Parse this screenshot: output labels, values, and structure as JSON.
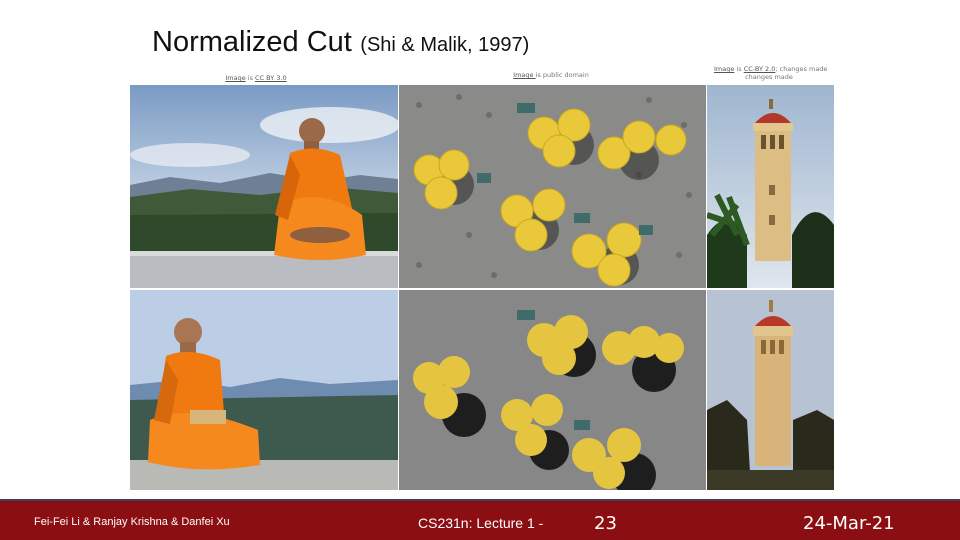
{
  "slide": {
    "title": "Normalized Cut",
    "title_citation": "(Shi & Malik, 1997)"
  },
  "credits": {
    "monk": {
      "link": "Image",
      "mid": " is ",
      "license": "CC BY 3.0",
      "tail": ""
    },
    "umbrellas": {
      "link": "Image ",
      "mid": " is public domain",
      "license": "",
      "tail": ""
    },
    "tower": {
      "link": "Image",
      "mid": " is ",
      "license": "CC-BY 2.0",
      "tail": "; changes made"
    }
  },
  "images": {
    "monk_photo": "monk-photo",
    "umbrellas_photo": "umbrellas-photo",
    "tower_photo": "tower-photo",
    "monk_segmented": "monk-segmented",
    "umbrellas_segmented": "umbrellas-segmented",
    "tower_segmented": "tower-segmented"
  },
  "footer": {
    "authors": "Fei-Fei Li & Ranjay Krishna & Danfei Xu",
    "course": "CS231n: Lecture 1 -",
    "page": "23",
    "date": "24-Mar-21"
  },
  "colors": {
    "footer_bg": "#8b0f12",
    "footer_border": "#3d3d6b",
    "robe_orange": "#f07a10",
    "umbrella_yellow": "#e9c93a"
  }
}
